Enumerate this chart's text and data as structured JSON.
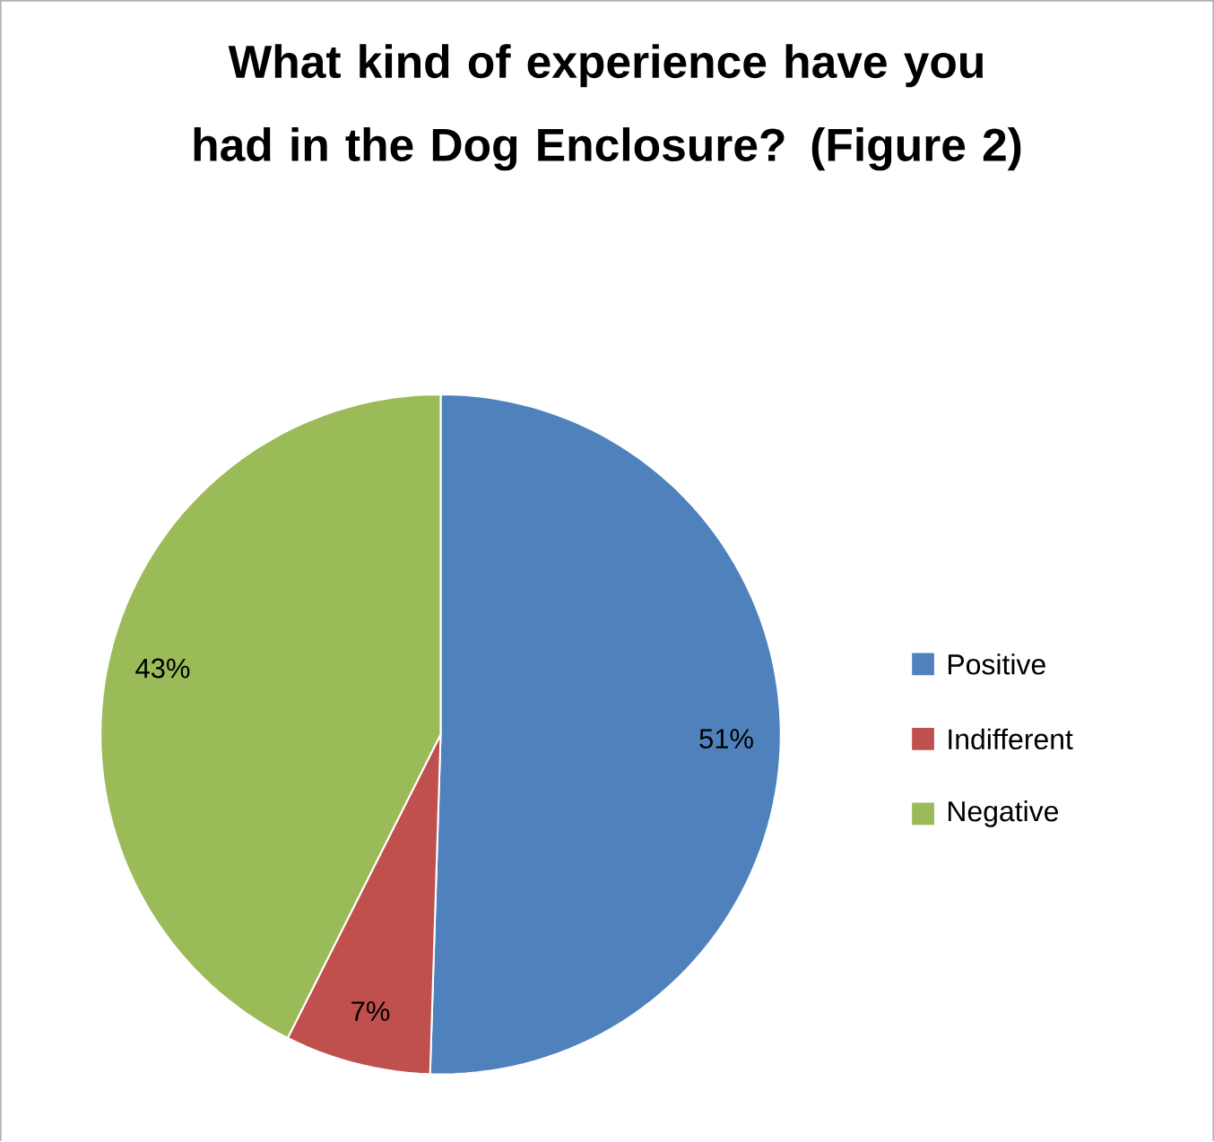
{
  "chart_data": {
    "type": "pie",
    "title": "What kind of experience have you had in the Dog Enclosure? (Figure 2)",
    "categories": [
      "Positive",
      "Indifferent",
      "Negative"
    ],
    "values": [
      51,
      7,
      43
    ],
    "colors": [
      "#4f81bd",
      "#c0504d",
      "#9bbb59"
    ],
    "data_labels": true,
    "value_labels": [
      "51%",
      "7%",
      "43%"
    ],
    "legend": "right"
  }
}
